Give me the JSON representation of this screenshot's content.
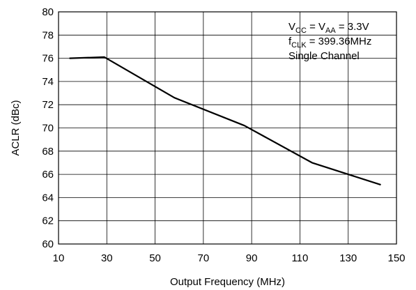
{
  "chart_data": {
    "type": "line",
    "xlabel": "Output Frequency (MHz)",
    "ylabel": "ACLR (dBc)",
    "xlim": [
      10,
      150
    ],
    "ylim": [
      60,
      80
    ],
    "x_ticks": [
      10,
      30,
      50,
      70,
      90,
      110,
      130,
      150
    ],
    "y_ticks": [
      60,
      62,
      64,
      66,
      68,
      70,
      72,
      74,
      76,
      78,
      80
    ],
    "grid": true,
    "series": [
      {
        "x": [
          14.5,
          29,
          58,
          87,
          115,
          143.5
        ],
        "y": [
          76.0,
          76.1,
          72.6,
          70.2,
          67.0,
          65.1
        ]
      }
    ],
    "annotation": {
      "line1": {
        "a": "V",
        "a_sub": "CC",
        "mid": " = V",
        "b_sub": "AA",
        "end": " = 3.3V"
      },
      "line2": {
        "a": "f",
        "a_sub": "CLK",
        "end": " = 399.36MHz"
      },
      "line3": "Single Channel"
    }
  }
}
